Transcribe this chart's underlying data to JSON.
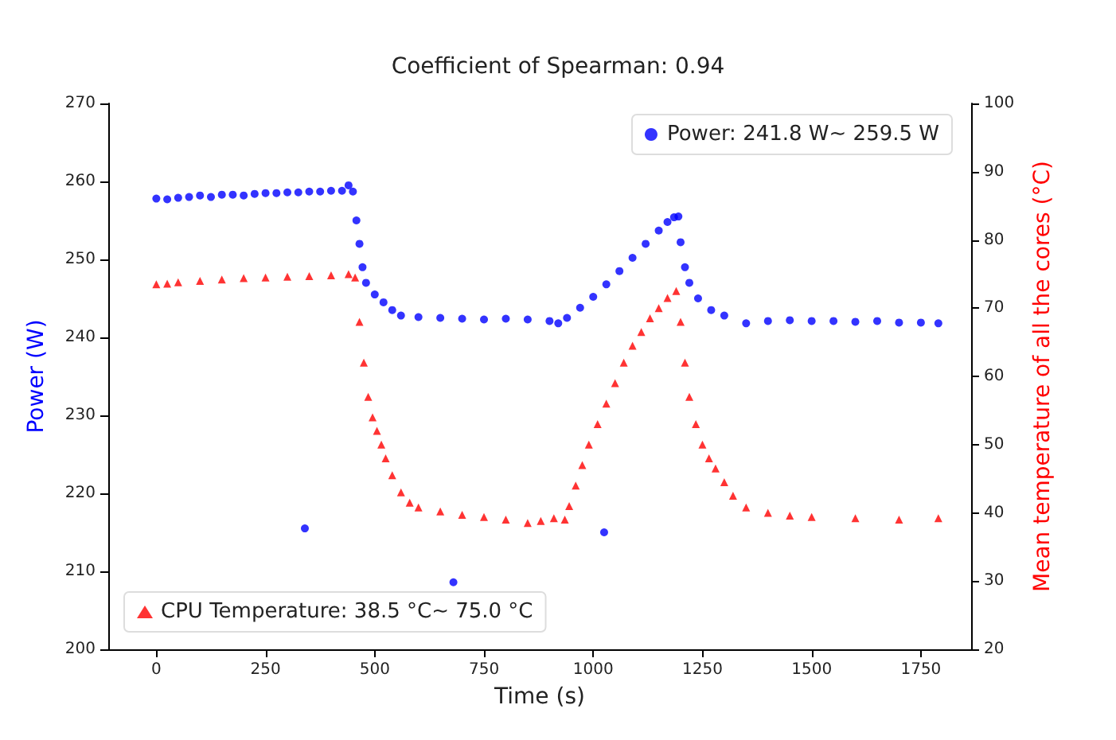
{
  "chart_data": {
    "type": "scatter",
    "title": "Coefficient of Spearman: 0.94",
    "xlabel": "Time (s)",
    "ylabel": "Power (W)",
    "y2label": "Mean temperature of all the cores (°C)",
    "xlim": [
      -110,
      1865
    ],
    "xticks": [
      0,
      250,
      500,
      750,
      1000,
      1250,
      1500,
      1750
    ],
    "ylim": [
      200,
      270
    ],
    "yticks": [
      200,
      210,
      220,
      230,
      240,
      250,
      260,
      270
    ],
    "y2lim": [
      20,
      100
    ],
    "y2ticks": [
      20,
      30,
      40,
      50,
      60,
      70,
      80,
      90,
      100
    ],
    "grid": false,
    "legend": "top right",
    "series": [
      {
        "name": "Power: 241.8 W~ 259.5 W",
        "color": "#0000ff",
        "marker": "circle",
        "x": [
          0,
          25,
          50,
          75,
          100,
          125,
          150,
          175,
          200,
          225,
          250,
          275,
          300,
          325,
          350,
          375,
          400,
          425,
          440,
          450,
          458,
          465,
          472,
          480,
          500,
          520,
          540,
          560,
          600,
          650,
          700,
          750,
          800,
          850,
          900,
          920,
          940,
          970,
          1000,
          1030,
          1060,
          1090,
          1120,
          1150,
          1170,
          1185,
          1195,
          1200,
          1210,
          1220,
          1240,
          1270,
          1300,
          1350,
          1400,
          1450,
          1500,
          1550,
          1600,
          1650,
          1700,
          1750,
          1790,
          340,
          680,
          1025
        ],
        "values": [
          257.8,
          257.7,
          257.9,
          258.0,
          258.2,
          258.0,
          258.3,
          258.3,
          258.2,
          258.4,
          258.5,
          258.5,
          258.6,
          258.6,
          258.7,
          258.7,
          258.8,
          258.8,
          259.5,
          258.7,
          255,
          252,
          249,
          247,
          245.5,
          244.5,
          243.5,
          242.8,
          242.6,
          242.5,
          242.4,
          242.3,
          242.4,
          242.3,
          242.1,
          241.8,
          242.5,
          243.8,
          245.2,
          246.8,
          248.5,
          250.2,
          252,
          253.7,
          254.8,
          255.4,
          255.5,
          252.2,
          249,
          247,
          245,
          243.5,
          242.8,
          241.8,
          242.1,
          242.2,
          242.1,
          242.1,
          242.0,
          242.1,
          241.9,
          241.9,
          241.8,
          215.5,
          208.6,
          215
        ]
      },
      {
        "name": "CPU Temperature: 38.5 °C~ 75.0 °C",
        "color": "#ff0000",
        "marker": "triangle",
        "axis": "y2",
        "x": [
          0,
          25,
          50,
          100,
          150,
          200,
          250,
          300,
          350,
          400,
          440,
          455,
          465,
          475,
          485,
          495,
          505,
          515,
          525,
          540,
          560,
          580,
          600,
          650,
          700,
          750,
          800,
          850,
          880,
          910,
          935,
          945,
          960,
          975,
          990,
          1010,
          1030,
          1050,
          1070,
          1090,
          1110,
          1130,
          1150,
          1170,
          1190,
          1200,
          1210,
          1220,
          1235,
          1250,
          1265,
          1280,
          1300,
          1320,
          1350,
          1400,
          1450,
          1500,
          1600,
          1700,
          1790
        ],
        "values": [
          73.5,
          73.6,
          73.8,
          74.0,
          74.2,
          74.4,
          74.5,
          74.6,
          74.7,
          74.8,
          75.0,
          74.5,
          68,
          62,
          57,
          54,
          52,
          50,
          48,
          45.5,
          43,
          41.5,
          40.8,
          40.2,
          39.7,
          39.4,
          39.0,
          38.5,
          38.8,
          39.2,
          39.0,
          41,
          44,
          47,
          50,
          53,
          56,
          59,
          62,
          64.5,
          66.5,
          68.5,
          70,
          71.5,
          72.5,
          68,
          62,
          57,
          53,
          50,
          48,
          46.5,
          44.5,
          42.5,
          40.8,
          40,
          39.6,
          39.4,
          39.2,
          39.0,
          39.2
        ]
      }
    ]
  }
}
